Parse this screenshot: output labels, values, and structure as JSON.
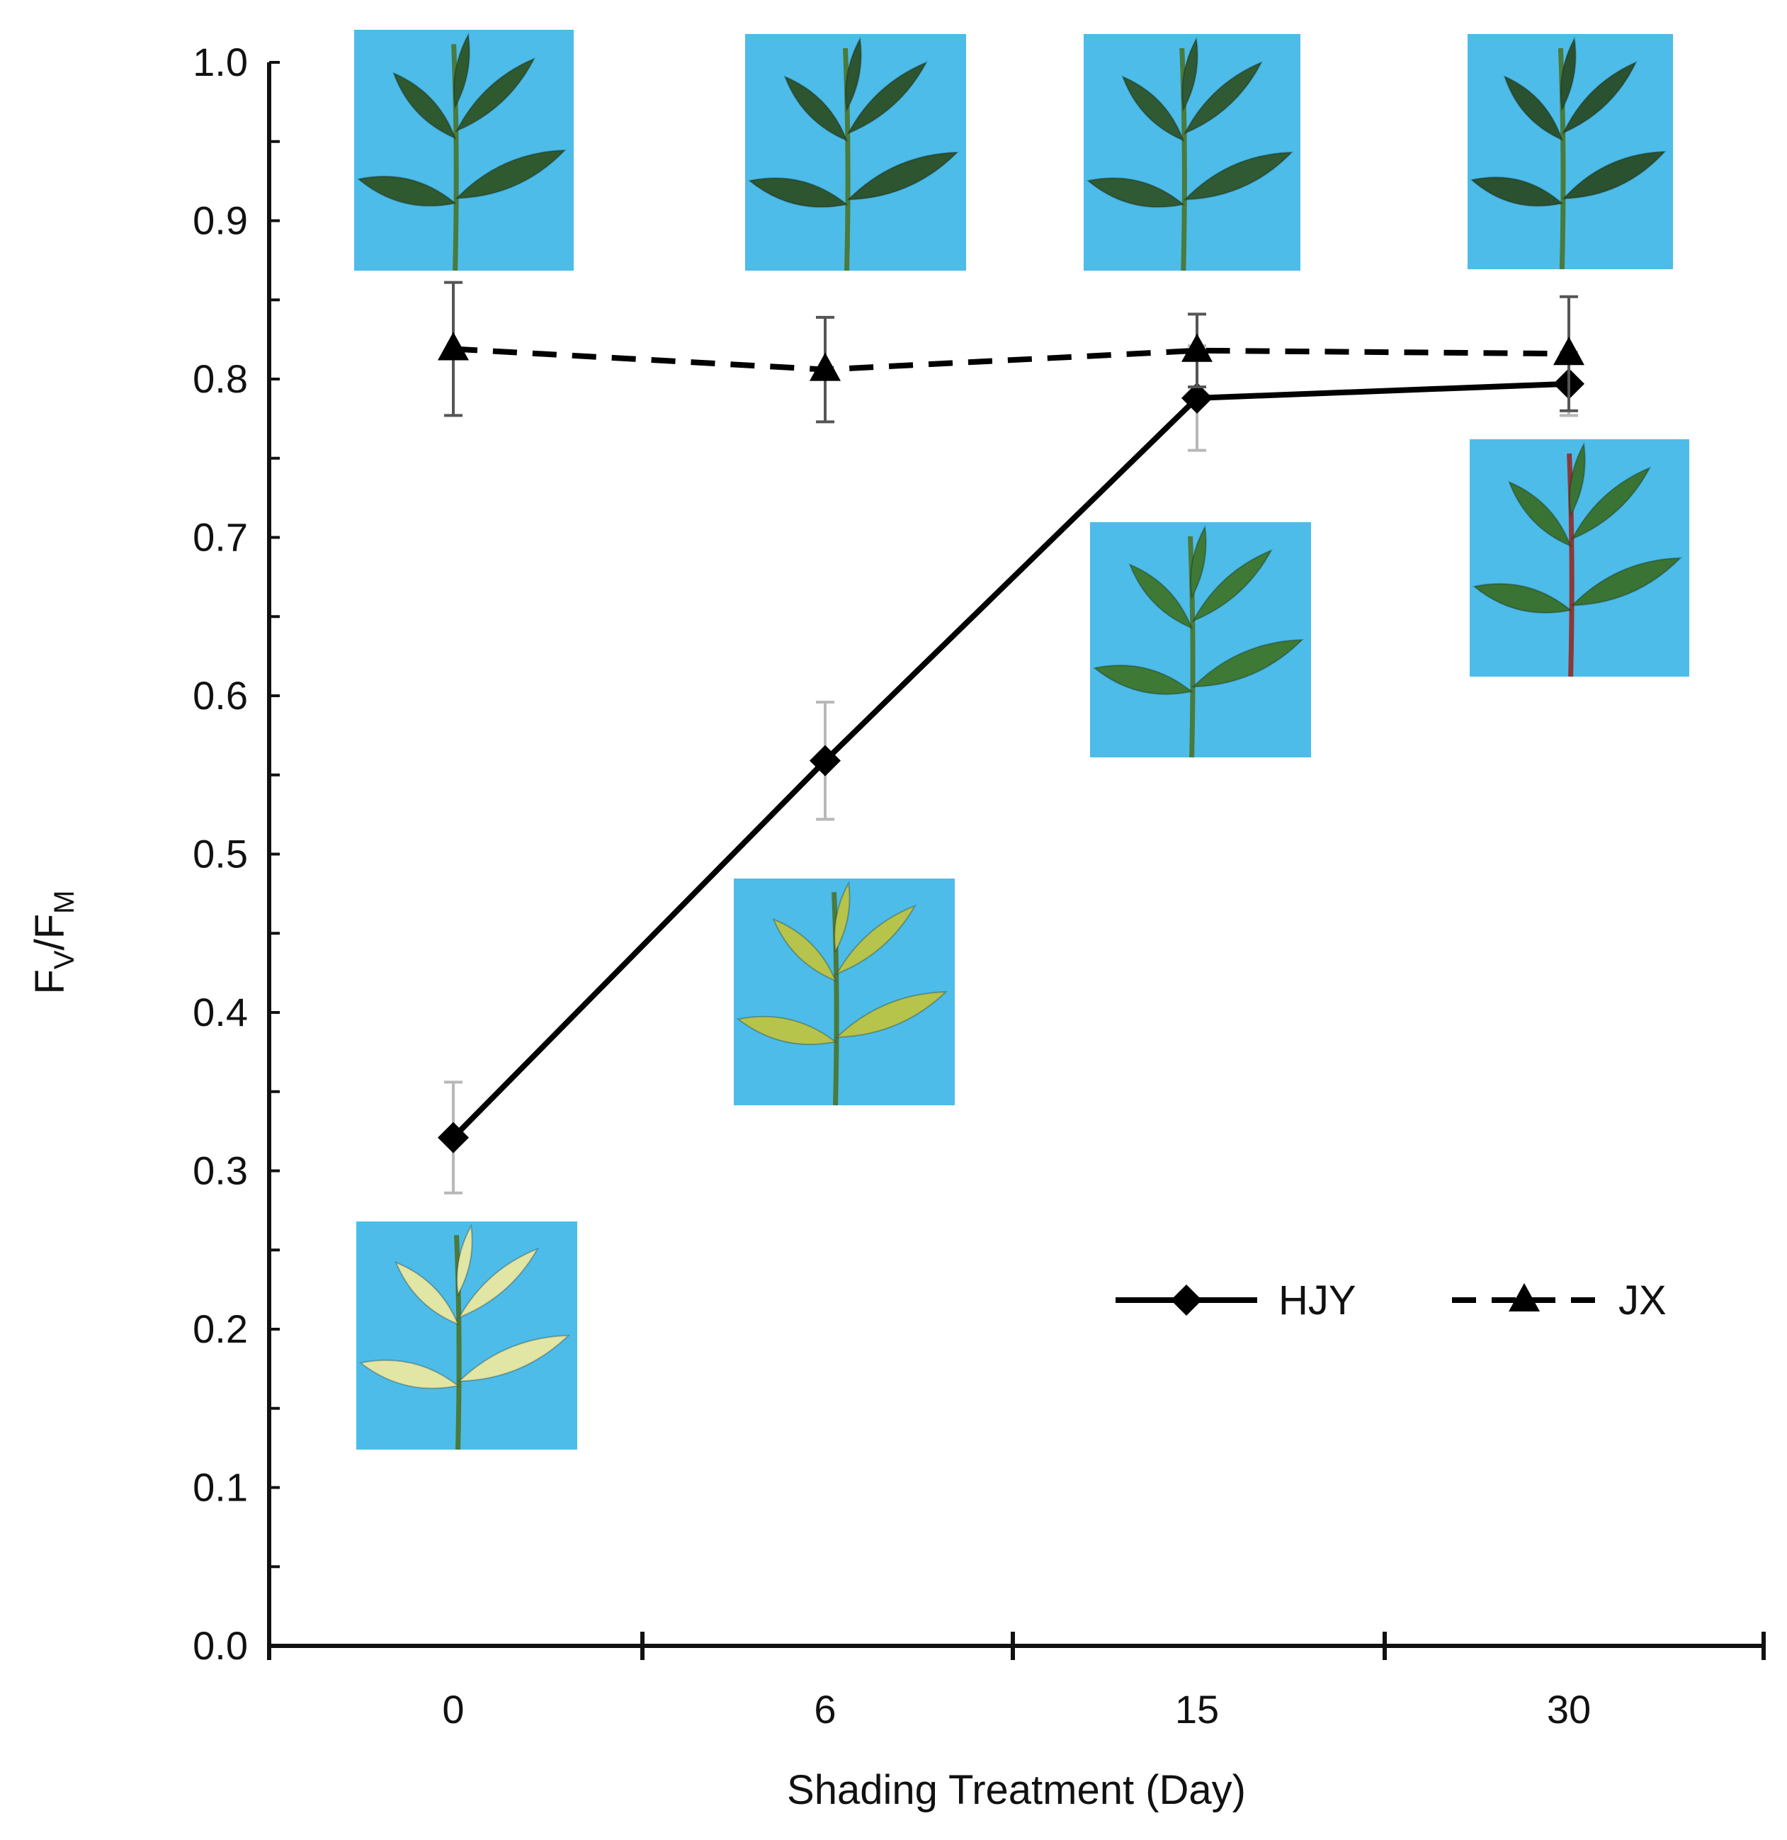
{
  "chart_data": {
    "type": "line",
    "title": "",
    "xlabel": "Shading Treatment (Day)",
    "ylabel": {
      "main": "F",
      "sub1": "V",
      "sep": "/F",
      "sub2": "M"
    },
    "categories": [
      "0",
      "6",
      "15",
      "30"
    ],
    "ylim": [
      0.0,
      1.0
    ],
    "yticks": [
      "0.0",
      "0.1",
      "0.2",
      "0.3",
      "0.4",
      "0.5",
      "0.6",
      "0.7",
      "0.8",
      "0.9",
      "1.0"
    ],
    "grid": false,
    "legend_position": "lower-right",
    "series": [
      {
        "name": "HJY",
        "values": [
          0.321,
          0.559,
          0.788,
          0.797
        ],
        "errors": [
          0.035,
          0.037,
          0.033,
          0.02
        ],
        "line_style": "solid",
        "marker": "diamond",
        "error_color": "#b8b8b8"
      },
      {
        "name": "JX",
        "values": [
          0.819,
          0.806,
          0.818,
          0.816
        ],
        "errors": [
          0.042,
          0.033,
          0.023,
          0.036
        ],
        "line_style": "dashed",
        "marker": "triangle",
        "error_color": "#555555"
      }
    ],
    "leaf_images": [
      {
        "series": "JX",
        "day": "0",
        "leaf_color": "#2f5a30",
        "position": "above"
      },
      {
        "series": "JX",
        "day": "6",
        "leaf_color": "#2d5530",
        "position": "above"
      },
      {
        "series": "JX",
        "day": "15",
        "leaf_color": "#2f5a34",
        "position": "above"
      },
      {
        "series": "JX",
        "day": "30",
        "leaf_color": "#2b5230",
        "position": "above"
      },
      {
        "series": "HJY",
        "day": "0",
        "leaf_color": "#e2e6a4",
        "position": "below"
      },
      {
        "series": "HJY",
        "day": "6",
        "leaf_color": "#b7c44c",
        "position": "below"
      },
      {
        "series": "HJY",
        "day": "15",
        "leaf_color": "#3e7a36",
        "position": "below"
      },
      {
        "series": "HJY",
        "day": "30",
        "leaf_color": "#3a7434",
        "position": "below"
      }
    ],
    "colors": {
      "axis": "#111111",
      "line": "#000000",
      "photo_bg": "#4dbce8"
    }
  }
}
